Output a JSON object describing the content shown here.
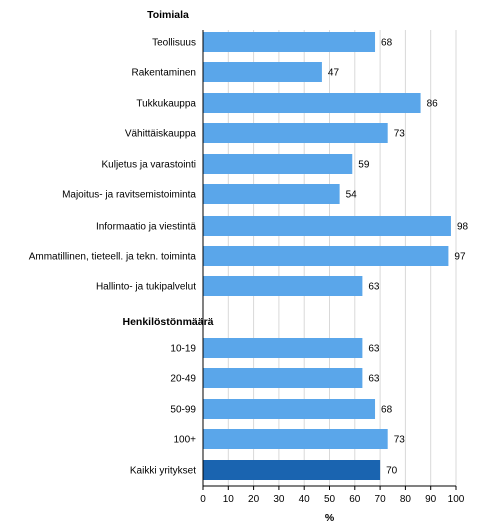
{
  "chart_data": {
    "type": "bar",
    "orientation": "horizontal",
    "xlabel": "%",
    "xlim": [
      0,
      100
    ],
    "x_ticks": [
      "0",
      "10",
      "20",
      "30",
      "40",
      "50",
      "60",
      "70",
      "80",
      "90",
      "100"
    ],
    "grid": "vertical",
    "groups": [
      {
        "heading": "Toimiala",
        "categories": [
          "Teollisuus",
          "Rakentaminen",
          "Tukkukauppa",
          "Vähittäiskauppa",
          "Kuljetus ja varastointi",
          "Majoitus- ja ravitsemistoiminta",
          "Informaatio ja viestintä",
          "Ammatillinen, tieteell. ja tekn. toiminta",
          "Hallinto- ja tukipalvelut"
        ],
        "values": [
          68,
          47,
          86,
          73,
          59,
          54,
          98,
          97,
          63
        ]
      },
      {
        "heading": "Henkilöstönmäärä",
        "categories": [
          "10-19",
          "20-49",
          "50-99",
          "100+"
        ],
        "values": [
          63,
          63,
          68,
          73
        ]
      },
      {
        "heading": "",
        "categories": [
          "Kaikki yritykset"
        ],
        "values": [
          70
        ]
      }
    ],
    "colors": {
      "bar": "#5aa6ea",
      "highlight": "#1a64b0",
      "grid": "#d9d9d9",
      "axis": "#000000"
    }
  }
}
